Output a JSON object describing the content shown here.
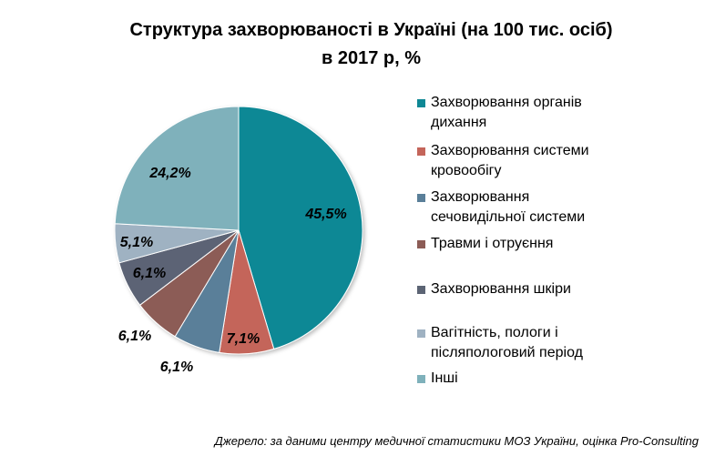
{
  "chart_data": {
    "type": "pie",
    "title_line1": "Структура  захворюваності  в Україні  (на 100 тис. осіб)",
    "title_line2": "в 2017 р, %",
    "slices": [
      {
        "label": "Захворювання органів дихання",
        "value": 45.5,
        "value_label": "45,5%",
        "color": "#0f8895"
      },
      {
        "label": "Захворювання системи кровообігу",
        "value": 7.1,
        "value_label": "7,1%",
        "color": "#c4655a"
      },
      {
        "label": "Захворювання сечовидільної системи",
        "value": 6.1,
        "value_label": "6,1%",
        "color": "#5a7f99"
      },
      {
        "label": "Травми і отруєння",
        "value": 6.1,
        "value_label": "6,1%",
        "color": "#8c5c56"
      },
      {
        "label": "Захворювання шкіри",
        "value": 6.1,
        "value_label": "6,1%",
        "color": "#5c6474"
      },
      {
        "label": "Вагітність, пологи і післяпологовий період",
        "value": 5.1,
        "value_label": "5,1%",
        "color": "#9fb2c2"
      },
      {
        "label": "Інші",
        "value": 24.2,
        "value_label": "24,2%",
        "color": "#7fb1bb"
      }
    ],
    "legend_position": "right"
  },
  "legend": [
    {
      "line1": "Захворювання органів",
      "line2": "дихання"
    },
    {
      "line1": "Захворювання системи",
      "line2": "кровообігу"
    },
    {
      "line1": "Захворювання",
      "line2": "сечовидільної системи"
    },
    {
      "line1": "Травми і отруєння",
      "line2": ""
    },
    {
      "line1": "Захворювання шкіри",
      "line2": ""
    },
    {
      "line1": "Вагітність, пологи і",
      "line2": "післяпологовий період"
    },
    {
      "line1": "Інші",
      "line2": ""
    }
  ],
  "source": "Джерело: за даними центру медичної статистики МОЗ України, оцінка Pro-Consulting"
}
